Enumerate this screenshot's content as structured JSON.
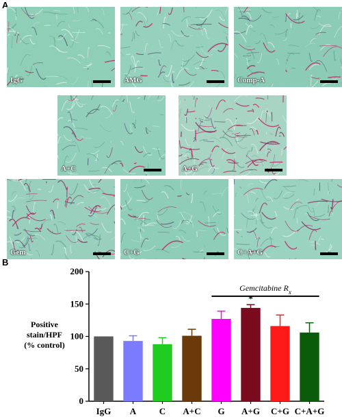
{
  "panel_a_label": "A",
  "panel_b_label": "B",
  "micrographs": [
    {
      "label": "IgG",
      "base": "#8fcfb8",
      "red": 0.1
    },
    {
      "label": "AMG",
      "base": "#95d1bd",
      "red": 0.25
    },
    {
      "label": "Comp-A",
      "base": "#8ccbb6",
      "red": 0.2
    },
    {
      "label": "A+C",
      "base": "#92cfba",
      "red": 0.12
    },
    {
      "label": "A+G",
      "base": "#a8d4c4",
      "red": 0.85
    },
    {
      "label": "Gem",
      "base": "#98cfbd",
      "red": 0.55
    },
    {
      "label": "C+G",
      "base": "#8ecdb7",
      "red": 0.18
    },
    {
      "label": "C+A+G",
      "base": "#9ad3c0",
      "red": 0.3
    }
  ],
  "chart_data": {
    "type": "bar",
    "categories": [
      "IgG",
      "A",
      "C",
      "A+C",
      "G",
      "A+G",
      "C+G",
      "C+A+G"
    ],
    "values": [
      100,
      93,
      88,
      101,
      127,
      144,
      116,
      106
    ],
    "errors": [
      0,
      8,
      10,
      10,
      12,
      5,
      17,
      15
    ],
    "colors": [
      "#595959",
      "#7b7bff",
      "#1fcc1f",
      "#6b3a0a",
      "#ff00ff",
      "#7a0a1e",
      "#ff1a1a",
      "#0a5c0a"
    ],
    "ylim": [
      0,
      200
    ],
    "yticks": [
      "0",
      "50",
      "100",
      "150",
      "200"
    ],
    "ylabel_lines": [
      "Positive",
      "stain/HPF",
      "(% control)"
    ],
    "annotation_text": "Gemcitabine R",
    "annotation_sub": "x",
    "annotation_span": [
      "G",
      "C+A+G"
    ],
    "significance_marker": "*",
    "significance_category": "A+G"
  }
}
